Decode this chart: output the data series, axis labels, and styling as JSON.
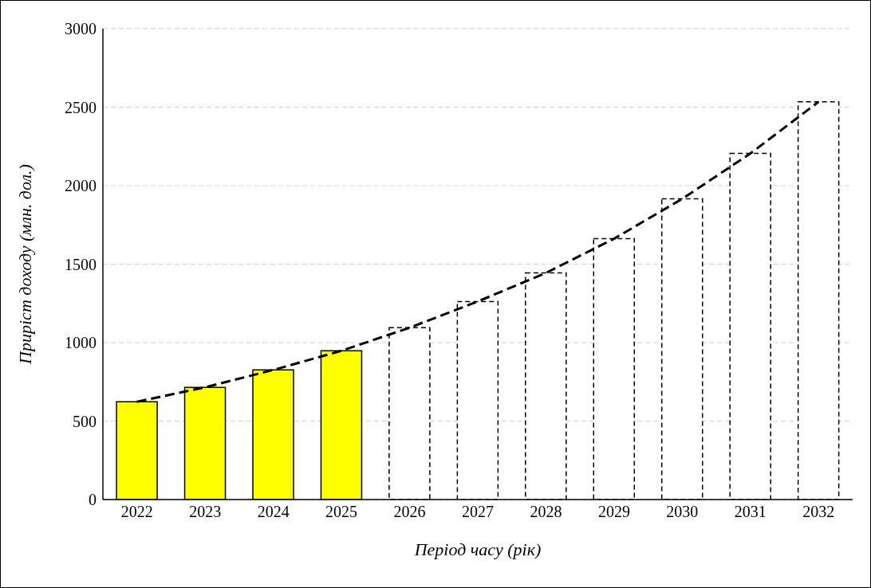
{
  "chart_data": {
    "type": "bar",
    "xlabel": "Період часу (рік)",
    "ylabel": "Приріст доходу (млн. дол.)",
    "categories": [
      "2022",
      "2023",
      "2024",
      "2025",
      "2026",
      "2027",
      "2028",
      "2029",
      "2030",
      "2031",
      "2032"
    ],
    "stacked": true,
    "series": [
      {
        "color": "#ffff00",
        "line_style": "solid",
        "values": [
          623,
          715,
          826,
          948,
          null,
          null,
          null,
          null,
          null,
          null,
          null
        ]
      },
      {
        "color": "#ffffff",
        "line_style": "dashed",
        "values": [
          null,
          null,
          null,
          null,
          1095,
          1262,
          1444,
          1662,
          1916,
          2205,
          2534
        ]
      },
      {
        "type": "line",
        "color": "#000000",
        "line_style": "dashed",
        "marker": "none",
        "values": [
          623,
          715,
          826,
          948,
          1095,
          1262,
          1444,
          1662,
          1916,
          2205,
          2534
        ]
      }
    ],
    "ylim": [
      0,
      3000
    ],
    "yticks": [
      0,
      500,
      1000,
      1500,
      2000,
      2500,
      3000
    ],
    "grid": "y",
    "legend": false
  }
}
